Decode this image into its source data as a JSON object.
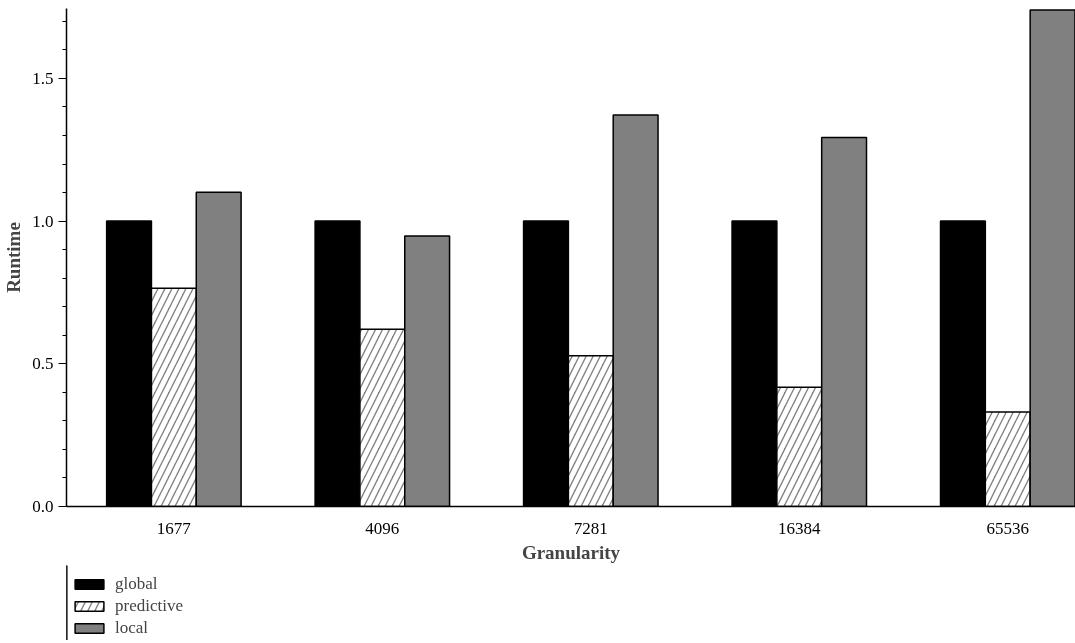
{
  "chart_data": {
    "type": "bar",
    "xlabel": "Granularity",
    "ylabel": "Runtime",
    "categories": [
      "1677",
      "4096",
      "7281",
      "16384",
      "65536"
    ],
    "series": [
      {
        "name": "global",
        "color": "#000000",
        "values": [
          1.0,
          1.0,
          1.0,
          1.0,
          1.0
        ]
      },
      {
        "name": "predictive",
        "color": "#808080",
        "values": [
          0.765,
          0.621,
          0.528,
          0.418,
          0.331
        ]
      },
      {
        "name": "local",
        "color": "#808080",
        "values": [
          1.101,
          0.948,
          1.372,
          1.293,
          1.74
        ]
      }
    ],
    "ylim": [
      0,
      1.745
    ],
    "yticks": [
      {
        "value": 0,
        "label": "0.0"
      },
      {
        "value": 0.5,
        "label": "0.5"
      },
      {
        "value": 1.0,
        "label": "1.0"
      },
      {
        "value": 1.5,
        "label": "1.5"
      }
    ],
    "grid": false,
    "legend": "bottom left"
  }
}
